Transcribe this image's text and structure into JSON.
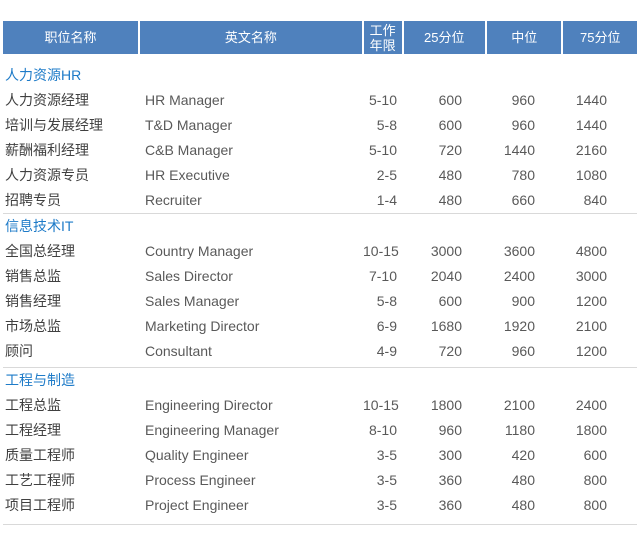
{
  "table": {
    "accent_color": "#4f81bd",
    "section_title_color": "#1e7bc8",
    "divider_color": "#d9d9d9",
    "columns": [
      "职位名称",
      "英文名称",
      "工作年限",
      "25分位",
      "中位",
      "75分位"
    ],
    "sections": [
      {
        "title": "人力资源HR",
        "rows": [
          [
            "人力资源经理",
            "HR Manager",
            "5-10",
            "600",
            "960",
            "1440"
          ],
          [
            "培训与发展经理",
            "T&D Manager",
            "5-8",
            "600",
            "960",
            "1440"
          ],
          [
            "薪酬福利经理",
            "C&B Manager",
            "5-10",
            "720",
            "1440",
            "2160"
          ],
          [
            "人力资源专员",
            "HR Executive",
            "2-5",
            "480",
            "780",
            "1080"
          ],
          [
            "招聘专员",
            "Recruiter",
            "1-4",
            "480",
            "660",
            "840"
          ]
        ]
      },
      {
        "title": "信息技术IT",
        "rows": [
          [
            "全国总经理",
            "Country Manager",
            "10-15",
            "3000",
            "3600",
            "4800"
          ],
          [
            "销售总监",
            "Sales Director",
            "7-10",
            "2040",
            "2400",
            "3000"
          ],
          [
            "销售经理",
            "Sales Manager",
            "5-8",
            "600",
            "900",
            "1200"
          ],
          [
            "市场总监",
            "Marketing Director",
            "6-9",
            "1680",
            "1920",
            "2100"
          ],
          [
            "顾问",
            "Consultant",
            "4-9",
            "720",
            "960",
            "1200"
          ]
        ]
      },
      {
        "title": "工程与制造",
        "rows": [
          [
            "工程总监",
            "Engineering Director",
            "10-15",
            "1800",
            "2100",
            "2400"
          ],
          [
            "工程经理",
            "Engineering Manager",
            "8-10",
            "960",
            "1180",
            "1800"
          ],
          [
            "质量工程师",
            "Quality Engineer",
            "3-5",
            "300",
            "420",
            "600"
          ],
          [
            "工艺工程师",
            "Process Engineer",
            "3-5",
            "360",
            "480",
            "800"
          ],
          [
            "项目工程师",
            "Project Engineer",
            "3-5",
            "360",
            "480",
            "800"
          ]
        ]
      }
    ]
  }
}
